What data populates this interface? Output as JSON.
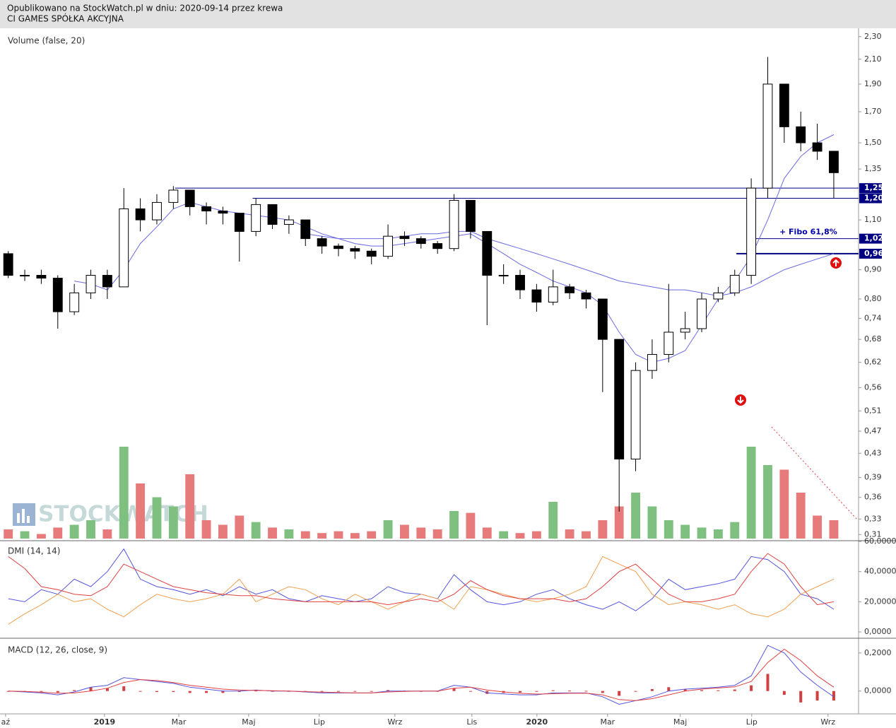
{
  "header": {
    "line1": "Opublikowano na StockWatch.pl w dniu: 2020-09-14 przez krewa",
    "line2": "CI GAMES SPÓŁKA AKCYJNA"
  },
  "watermark": "STOCKWATCH",
  "chart_data": [
    {
      "type": "candlestick",
      "title": "Volume (false, 20)",
      "log_scale": true,
      "open": [
        0.96,
        0.88,
        0.88,
        0.87,
        0.76,
        0.82,
        0.88,
        0.84,
        1.15,
        1.1,
        1.18,
        1.24,
        1.16,
        1.14,
        1.13,
        1.05,
        1.17,
        1.08,
        1.1,
        1.02,
        0.99,
        0.98,
        0.97,
        0.95,
        1.03,
        1.02,
        1.0,
        0.98,
        1.19,
        1.05,
        0.88,
        0.88,
        0.83,
        0.79,
        0.84,
        0.82,
        0.8,
        0.68,
        0.42,
        0.6,
        0.64,
        0.7,
        0.71,
        0.8,
        0.82,
        0.88,
        1.25,
        1.9,
        1.6,
        1.5,
        1.45
      ],
      "high": [
        0.97,
        0.9,
        0.9,
        0.88,
        0.85,
        0.9,
        0.9,
        1.25,
        1.2,
        1.22,
        1.26,
        1.24,
        1.18,
        1.16,
        1.13,
        1.2,
        1.17,
        1.12,
        1.1,
        1.03,
        1.0,
        0.99,
        0.98,
        1.08,
        1.05,
        1.03,
        1.01,
        1.22,
        1.19,
        1.05,
        0.92,
        0.9,
        0.85,
        0.9,
        0.85,
        0.83,
        0.8,
        0.68,
        0.62,
        0.68,
        0.85,
        0.76,
        0.82,
        0.84,
        0.9,
        1.3,
        2.12,
        1.9,
        1.7,
        1.62,
        1.45
      ],
      "low": [
        0.87,
        0.86,
        0.85,
        0.71,
        0.75,
        0.8,
        0.8,
        0.84,
        1.05,
        1.08,
        1.15,
        1.12,
        1.08,
        1.08,
        0.93,
        1.03,
        1.06,
        1.04,
        0.99,
        0.96,
        0.95,
        0.94,
        0.92,
        0.94,
        0.99,
        0.98,
        0.96,
        0.97,
        1.02,
        0.72,
        0.85,
        0.8,
        0.76,
        0.78,
        0.8,
        0.77,
        0.55,
        0.34,
        0.4,
        0.58,
        0.62,
        0.68,
        0.7,
        0.79,
        0.81,
        0.85,
        1.2,
        1.5,
        1.45,
        1.4,
        1.2
      ],
      "close": [
        0.88,
        0.88,
        0.87,
        0.76,
        0.82,
        0.88,
        0.84,
        1.15,
        1.1,
        1.18,
        1.24,
        1.16,
        1.14,
        1.13,
        1.05,
        1.17,
        1.08,
        1.1,
        1.02,
        0.99,
        0.98,
        0.97,
        0.95,
        1.03,
        1.02,
        1.0,
        0.98,
        1.19,
        1.05,
        0.88,
        0.88,
        0.83,
        0.79,
        0.84,
        0.82,
        0.8,
        0.68,
        0.42,
        0.6,
        0.64,
        0.7,
        0.71,
        0.8,
        0.82,
        0.88,
        1.25,
        1.9,
        1.6,
        1.5,
        1.45,
        1.33
      ],
      "series": [
        {
          "color": "#6a6ae0",
          "values": [
            null,
            null,
            null,
            null,
            0.86,
            0.85,
            0.83,
            0.9,
            1.0,
            1.07,
            1.15,
            1.18,
            1.16,
            1.14,
            1.13,
            1.12,
            1.11,
            1.1,
            1.07,
            1.04,
            1.02,
            1.0,
            0.99,
            0.99,
            1.0,
            1.01,
            1.02,
            1.03,
            1.04,
            1.0,
            0.96,
            0.92,
            0.89,
            0.86,
            0.84,
            0.82,
            0.78,
            0.7,
            0.64,
            0.62,
            0.63,
            0.65,
            0.72,
            0.8,
            0.86,
            0.95,
            1.1,
            1.3,
            1.42,
            1.5,
            1.55
          ]
        },
        {
          "color": "#6a6ae0",
          "values": [
            null,
            null,
            null,
            null,
            null,
            null,
            null,
            null,
            null,
            null,
            null,
            null,
            null,
            null,
            null,
            null,
            null,
            null,
            1.04,
            1.03,
            1.02,
            1.02,
            1.02,
            1.02,
            1.03,
            1.04,
            1.04,
            1.05,
            1.05,
            1.02,
            1.0,
            0.98,
            0.96,
            0.94,
            0.92,
            0.9,
            0.88,
            0.86,
            0.85,
            0.84,
            0.83,
            0.83,
            0.82,
            0.81,
            0.82,
            0.84,
            0.87,
            0.9,
            0.92,
            0.94,
            0.96
          ]
        }
      ],
      "levels": [
        {
          "value": 1.25,
          "label": "1,25"
        },
        {
          "value": 1.2,
          "label": "1,20"
        },
        {
          "value": 1.02,
          "label": "1,02"
        },
        {
          "value": 0.96,
          "label": "0,96"
        }
      ],
      "level_color": "#000080",
      "annotation": "+ Fibo 61,8%",
      "volume": [
        10,
        8,
        5,
        12,
        15,
        20,
        10,
        100,
        60,
        45,
        35,
        70,
        20,
        15,
        25,
        18,
        12,
        10,
        8,
        6,
        8,
        6,
        8,
        20,
        15,
        12,
        10,
        30,
        28,
        12,
        8,
        6,
        8,
        40,
        10,
        8,
        20,
        35,
        50,
        35,
        20,
        15,
        12,
        10,
        18,
        100,
        80,
        75,
        50,
        25,
        20
      ],
      "volume_lim": [
        0,
        100
      ],
      "up_color": "#7fbf7f",
      "down_color": "#e77a7a",
      "xlim": [
        -0.5,
        51.5
      ],
      "xticks": [
        {
          "value": -0.16,
          "label": "aź"
        },
        {
          "value": 5.83,
          "label": "2019"
        },
        {
          "value": 10.33,
          "label": "Mar"
        },
        {
          "value": 14.56,
          "label": "Maj"
        },
        {
          "value": 18.84,
          "label": "Lip"
        },
        {
          "value": 23.42,
          "label": "Wrz"
        },
        {
          "value": 28.08,
          "label": "Lis"
        },
        {
          "value": 32.02,
          "label": "2020"
        },
        {
          "value": 36.3,
          "label": "Mar"
        },
        {
          "value": 40.7,
          "label": "Maj"
        },
        {
          "value": 45.03,
          "label": "Lip"
        },
        {
          "value": 49.65,
          "label": "Wrz"
        }
      ],
      "ylim": [
        0.305,
        2.365
      ],
      "yticks": [
        {
          "value": 2.3,
          "label": "2,30"
        },
        {
          "value": 2.1,
          "label": "2,10"
        },
        {
          "value": 1.9,
          "label": "1,90"
        },
        {
          "value": 1.7,
          "label": "1,70"
        },
        {
          "value": 1.5,
          "label": "1,50"
        },
        {
          "value": 1.35,
          "label": "1,35"
        },
        {
          "value": 1.1,
          "label": "1,10"
        },
        {
          "value": 0.9,
          "label": "0,90"
        },
        {
          "value": 0.8,
          "label": "0,80"
        },
        {
          "value": 0.74,
          "label": "0,74"
        },
        {
          "value": 0.68,
          "label": "0,68"
        },
        {
          "value": 0.62,
          "label": "0,62"
        },
        {
          "value": 0.56,
          "label": "0,56"
        },
        {
          "value": 0.51,
          "label": "0,51"
        },
        {
          "value": 0.47,
          "label": "0,47"
        },
        {
          "value": 0.43,
          "label": "0,43"
        },
        {
          "value": 0.39,
          "label": "0,39"
        },
        {
          "value": 0.36,
          "label": "0,36"
        },
        {
          "value": 0.33,
          "label": "0,33"
        },
        {
          "value": 0.31,
          "label": "0,31"
        }
      ]
    },
    {
      "type": "line",
      "title": "DMI (14, 14)",
      "series": [
        {
          "color": "#5555dd",
          "values": [
            22,
            20,
            28,
            25,
            35,
            30,
            40,
            55,
            35,
            30,
            28,
            25,
            28,
            24,
            30,
            25,
            28,
            22,
            20,
            24,
            22,
            20,
            22,
            30,
            26,
            25,
            22,
            38,
            28,
            20,
            18,
            20,
            25,
            28,
            22,
            18,
            15,
            20,
            14,
            22,
            35,
            28,
            30,
            32,
            35,
            50,
            48,
            40,
            25,
            22,
            15
          ]
        },
        {
          "color": "#f0a050",
          "values": [
            5,
            12,
            18,
            25,
            20,
            22,
            15,
            10,
            18,
            25,
            22,
            20,
            22,
            25,
            35,
            20,
            25,
            30,
            28,
            22,
            18,
            25,
            20,
            15,
            20,
            25,
            22,
            15,
            30,
            28,
            25,
            22,
            20,
            22,
            25,
            30,
            50,
            45,
            40,
            25,
            18,
            20,
            18,
            15,
            18,
            12,
            10,
            15,
            25,
            30,
            35
          ]
        },
        {
          "color": "#e04040",
          "values": [
            50,
            42,
            30,
            28,
            25,
            24,
            30,
            45,
            40,
            35,
            30,
            28,
            26,
            25,
            24,
            24,
            22,
            21,
            20,
            20,
            20,
            20,
            20,
            18,
            20,
            22,
            20,
            25,
            34,
            28,
            24,
            22,
            22,
            22,
            20,
            22,
            30,
            40,
            45,
            35,
            25,
            20,
            20,
            22,
            25,
            40,
            52,
            45,
            30,
            18,
            20
          ]
        }
      ],
      "xlim": [
        -0.5,
        51.5
      ],
      "ylim": [
        -3.75,
        60.5
      ],
      "yticks": [
        {
          "value": 60,
          "label": "60,0000"
        },
        {
          "value": 40,
          "label": "40,0000"
        },
        {
          "value": 20,
          "label": "20,0000"
        },
        {
          "value": 0,
          "label": "0,0000"
        }
      ]
    },
    {
      "type": "macd",
      "title": "MACD (12, 26, close, 9)",
      "series": [
        {
          "color": "#5555dd",
          "values": [
            0,
            -0.005,
            -0.01,
            -0.02,
            -0.005,
            0.02,
            0.03,
            0.07,
            0.06,
            0.05,
            0.04,
            0.02,
            0.01,
            0,
            0,
            0.005,
            0,
            0,
            -0.005,
            -0.01,
            -0.01,
            -0.01,
            -0.01,
            0,
            0,
            0,
            0,
            0.03,
            0.02,
            -0.01,
            -0.015,
            -0.02,
            -0.02,
            -0.01,
            -0.01,
            -0.01,
            -0.03,
            -0.07,
            -0.05,
            -0.03,
            0,
            0.01,
            0.015,
            0.02,
            0.03,
            0.08,
            0.24,
            0.2,
            0.1,
            0.03,
            -0.03
          ]
        },
        {
          "color": "#e04040",
          "values": [
            0,
            -0.002,
            -0.006,
            -0.012,
            -0.01,
            0,
            0.015,
            0.045,
            0.06,
            0.055,
            0.045,
            0.03,
            0.02,
            0.01,
            0.005,
            0.003,
            0.002,
            0,
            -0.003,
            -0.006,
            -0.008,
            -0.01,
            -0.01,
            -0.005,
            -0.002,
            0,
            0,
            0.015,
            0.02,
            0.005,
            -0.005,
            -0.012,
            -0.016,
            -0.014,
            -0.012,
            -0.011,
            -0.02,
            -0.045,
            -0.05,
            -0.04,
            -0.02,
            0,
            0.01,
            0.016,
            0.022,
            0.05,
            0.15,
            0.22,
            0.16,
            0.08,
            0.02
          ]
        }
      ],
      "histogram": [
        0,
        -0.003,
        -0.004,
        -0.008,
        0.005,
        0.02,
        0.015,
        0.025,
        0,
        -0.005,
        -0.005,
        -0.01,
        -0.01,
        -0.01,
        -0.005,
        0.002,
        -0.002,
        0,
        -0.002,
        -0.004,
        -0.002,
        0,
        0,
        0.005,
        0.002,
        0,
        0,
        0.015,
        0,
        -0.015,
        -0.01,
        -0.008,
        -0.004,
        0.004,
        0.002,
        0.001,
        -0.01,
        -0.025,
        0,
        0.01,
        0.02,
        0.01,
        0.005,
        0.004,
        0.008,
        0.03,
        0.09,
        -0.02,
        -0.06,
        -0.05,
        -0.05
      ],
      "histogram_color": "#d04040",
      "xlim": [
        -0.5,
        51.5
      ],
      "ylim": [
        -0.12,
        0.27
      ],
      "yticks": [
        {
          "value": 0.2,
          "label": "0,2000"
        },
        {
          "value": 0,
          "label": "0,0000"
        }
      ]
    }
  ]
}
